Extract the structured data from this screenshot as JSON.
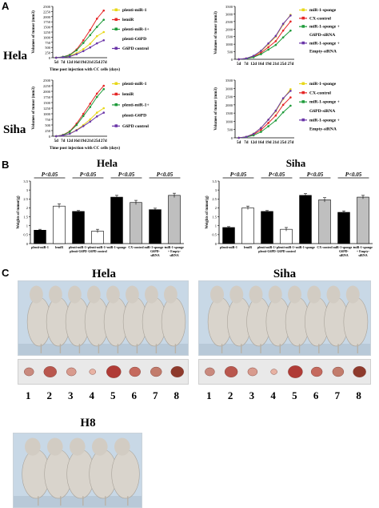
{
  "panels": {
    "A": "A",
    "B": "B",
    "C": "C"
  },
  "rows": {
    "hela": "Hela",
    "siha": "Siha"
  },
  "line_charts": [
    {
      "id": "hela-left",
      "ylabel": "Volumes of tumor (mm3)",
      "xlabel": "Time post injection with CC cells (days)",
      "x": [
        "5d",
        "7d",
        "12d",
        "16d",
        "19d",
        "21d",
        "25d",
        "27d"
      ],
      "ylim": [
        0,
        2500
      ],
      "yticks": [
        0,
        250,
        500,
        750,
        1000,
        1250,
        1500,
        1750,
        2000,
        2250,
        2500
      ],
      "series": [
        {
          "name": "plenti-miR-1",
          "color": "#e8d81a",
          "values": [
            0,
            30,
            90,
            220,
            420,
            680,
            1050,
            1250
          ]
        },
        {
          "name": "lemiR",
          "color": "#e52626",
          "values": [
            0,
            40,
            140,
            400,
            850,
            1350,
            1900,
            2300
          ]
        },
        {
          "name": "plenti-miR-1+ plenti-G6PD",
          "color": "#1e9b3a",
          "values": [
            0,
            40,
            130,
            360,
            720,
            1100,
            1500,
            1850
          ]
        },
        {
          "name": "G6PD control",
          "color": "#6a35a8",
          "values": [
            0,
            20,
            60,
            170,
            320,
            500,
            700,
            850
          ]
        }
      ],
      "legend": [
        "plenti-miR-1",
        "lemiR",
        "plenti-miR-1+",
        "plenti-G6PD",
        "G6PD control"
      ]
    },
    {
      "id": "hela-right",
      "ylabel": "Volumes of tumor (mm3)",
      "xlabel": "",
      "x": [
        "5d",
        "7d",
        "12d",
        "16d",
        "19d",
        "21d",
        "25d",
        "27d"
      ],
      "ylim": [
        0,
        3500
      ],
      "yticks": [
        0,
        500,
        1000,
        1500,
        2000,
        2500,
        3000,
        3500
      ],
      "series": [
        {
          "name": "miR-1-sponge",
          "color": "#e8d81a",
          "values": [
            0,
            60,
            220,
            520,
            1000,
            1500,
            2300,
            2950
          ]
        },
        {
          "name": "CX-control",
          "color": "#e52626",
          "values": [
            0,
            50,
            180,
            420,
            800,
            1200,
            1900,
            2500
          ]
        },
        {
          "name": "miR-1-sponge + G6PD-siRNA",
          "color": "#1e9b3a",
          "values": [
            0,
            40,
            140,
            340,
            640,
            950,
            1450,
            1900
          ]
        },
        {
          "name": "miR-1-sponge + Empty-siRNA",
          "color": "#6a35a8",
          "values": [
            0,
            60,
            230,
            560,
            1050,
            1550,
            2350,
            2900
          ]
        }
      ],
      "legend": [
        "miR-1-sponge",
        "CX-control",
        "miR-1-sponge +",
        "G6PD-siRNA",
        "miR-1-sponge +",
        "Empty-siRNA"
      ]
    },
    {
      "id": "siha-left",
      "ylabel": "Volumes of tumor (mm3)",
      "xlabel": "Time post injection with CC cells (days)",
      "x": [
        "5d",
        "7d",
        "12d",
        "16d",
        "19d",
        "21d",
        "25d",
        "27d"
      ],
      "ylim": [
        0,
        2500
      ],
      "yticks": [
        0,
        250,
        500,
        750,
        1000,
        1250,
        1500,
        1750,
        2000,
        2250,
        2500
      ],
      "series": [
        {
          "name": "plenti-miR-1",
          "color": "#e8d81a",
          "values": [
            0,
            40,
            120,
            280,
            500,
            750,
            1050,
            1250
          ]
        },
        {
          "name": "lemiR",
          "color": "#e52626",
          "values": [
            0,
            60,
            220,
            560,
            1000,
            1450,
            1900,
            2250
          ]
        },
        {
          "name": "plenti-miR-1+ plenti-G6PD",
          "color": "#1e9b3a",
          "values": [
            0,
            50,
            200,
            500,
            900,
            1300,
            1750,
            2100
          ]
        },
        {
          "name": "G6PD control",
          "color": "#6a35a8",
          "values": [
            0,
            30,
            110,
            260,
            450,
            650,
            880,
            1050
          ]
        }
      ],
      "legend": [
        "plenti-miR-1",
        "lemiR",
        "plenti-miR-1+",
        "plenti-G6PD",
        "G6PD control"
      ]
    },
    {
      "id": "siha-right",
      "ylabel": "Volumes of tumor (mm3)",
      "xlabel": "",
      "x": [
        "5d",
        "7d",
        "12d",
        "16d",
        "19d",
        "21d",
        "25d",
        "27d"
      ],
      "ylim": [
        0,
        3500
      ],
      "yticks": [
        0,
        500,
        1000,
        1500,
        2000,
        2500,
        3000,
        3500
      ],
      "series": [
        {
          "name": "miR-1-sponge",
          "color": "#e8d81a",
          "values": [
            0,
            60,
            250,
            600,
            1100,
            1600,
            2350,
            2950
          ]
        },
        {
          "name": "CX-control",
          "color": "#e52626",
          "values": [
            0,
            50,
            200,
            480,
            900,
            1350,
            2000,
            2450
          ]
        },
        {
          "name": "miR-1-sponge + G6PD-siRNA",
          "color": "#1e9b3a",
          "values": [
            0,
            40,
            150,
            360,
            700,
            1050,
            1550,
            1950
          ]
        },
        {
          "name": "miR-1-sponge + Empty-siRNA",
          "color": "#6a35a8",
          "values": [
            0,
            60,
            240,
            600,
            1100,
            1650,
            2400,
            2850
          ]
        }
      ],
      "legend": [
        "miR-1-sponge",
        "CX-control",
        "miR-1-sponge +",
        "G6PD-siRNA",
        "miR-1-sponge +",
        "Empty-siRNA"
      ]
    }
  ],
  "chart_data": [
    {
      "type": "bar",
      "title": "Hela",
      "ylabel": "Weights of tumor(g)",
      "ylim": [
        0,
        3.5
      ],
      "yticks": [
        0,
        0.5,
        1,
        1.5,
        2,
        2.5,
        3,
        3.5
      ],
      "categories": [
        "plenti-miR-1",
        "lemiR",
        "plenti-miR-1+ plenti-G6PD",
        "plenti-miR-1+ G6PD control",
        "miR-1-sponge",
        "CX-control",
        "miR-1-sponge + G6PD-siRNA",
        "miR-1-sponge + Empty-siRNA"
      ],
      "tick_labels": [
        [
          "plenti-miR-1"
        ],
        [
          "lemiR"
        ],
        [
          "plenti-miR-1+",
          "plenti-G6PD"
        ],
        [
          "plenti-miR-1+",
          "G6PD control"
        ],
        [
          "miR-1-sponge"
        ],
        [
          "CX-control"
        ],
        [
          "miR-1-sponge +",
          "G6PD-",
          "siRNA"
        ],
        [
          "miR-1-sponge",
          "+ Empty-",
          "siRNA"
        ]
      ],
      "values": [
        0.75,
        2.1,
        1.8,
        0.7,
        2.6,
        2.3,
        1.9,
        2.7
      ],
      "errors": [
        0.05,
        0.12,
        0.05,
        0.1,
        0.1,
        0.12,
        0.08,
        0.12
      ],
      "fills": [
        "#000000",
        "#ffffff",
        "#000000",
        "#ffffff",
        "#000000",
        "#bfbfbf",
        "#000000",
        "#bfbfbf"
      ],
      "significance": [
        {
          "pair": [
            0,
            1
          ],
          "label": "P<0.05"
        },
        {
          "pair": [
            2,
            3
          ],
          "label": "P<0.05"
        },
        {
          "pair": [
            4,
            5
          ],
          "label": "P<0.05"
        },
        {
          "pair": [
            6,
            7
          ],
          "label": "P<0.05"
        }
      ]
    },
    {
      "type": "bar",
      "title": "Siha",
      "ylabel": "Weights of tumor(g)",
      "ylim": [
        0,
        3.5
      ],
      "yticks": [
        0,
        0.5,
        1,
        1.5,
        2,
        2.5,
        3,
        3.5
      ],
      "categories": [
        "plenti-miR-1",
        "lemiR",
        "plenti-miR-1+ plenti-G6PD",
        "plenti-miR-1+ G6PD control",
        "miR-1-sponge",
        "CX-control",
        "miR-1-sponge + G6PD-siRNA",
        "miR-1-sponge + Empty-siRNA"
      ],
      "tick_labels": [
        [
          "plenti-miR-1"
        ],
        [
          "lemiR"
        ],
        [
          "plenti-miR-1+",
          "plenti-G6PD"
        ],
        [
          "plenti-miR-1+",
          "G6PD control"
        ],
        [
          "miR-1-sponge"
        ],
        [
          "CX-control"
        ],
        [
          "miR-1-sponge +",
          "G6PD-",
          "siRNA"
        ],
        [
          "miR-1-sponge",
          "+ Empty-",
          "siRNA"
        ]
      ],
      "values": [
        0.9,
        2.0,
        1.8,
        0.8,
        2.7,
        2.45,
        1.75,
        2.6
      ],
      "errors": [
        0.05,
        0.1,
        0.05,
        0.1,
        0.1,
        0.12,
        0.08,
        0.1
      ],
      "fills": [
        "#000000",
        "#ffffff",
        "#000000",
        "#ffffff",
        "#000000",
        "#bfbfbf",
        "#000000",
        "#bfbfbf"
      ],
      "significance": [
        {
          "pair": [
            0,
            1
          ],
          "label": "P<0.05"
        },
        {
          "pair": [
            2,
            3
          ],
          "label": "P<0.05"
        },
        {
          "pair": [
            4,
            5
          ],
          "label": "P<0.05"
        },
        {
          "pair": [
            6,
            7
          ],
          "label": "P<0.05"
        }
      ]
    }
  ],
  "photos": {
    "hela_title": "Hela",
    "siha_title": "Siha",
    "h8_title": "H8",
    "numbers": [
      "1",
      "2",
      "3",
      "4",
      "5",
      "6",
      "7",
      "8"
    ],
    "photo_bg": "#c8d8e6",
    "mouse_color": "#d9d4cc",
    "tumor_colors": [
      "#c98a7e",
      "#b9574e",
      "#d89b8e",
      "#e7b2a3",
      "#b03b36",
      "#c56a5e",
      "#c27c6c",
      "#8e3a2c"
    ]
  }
}
